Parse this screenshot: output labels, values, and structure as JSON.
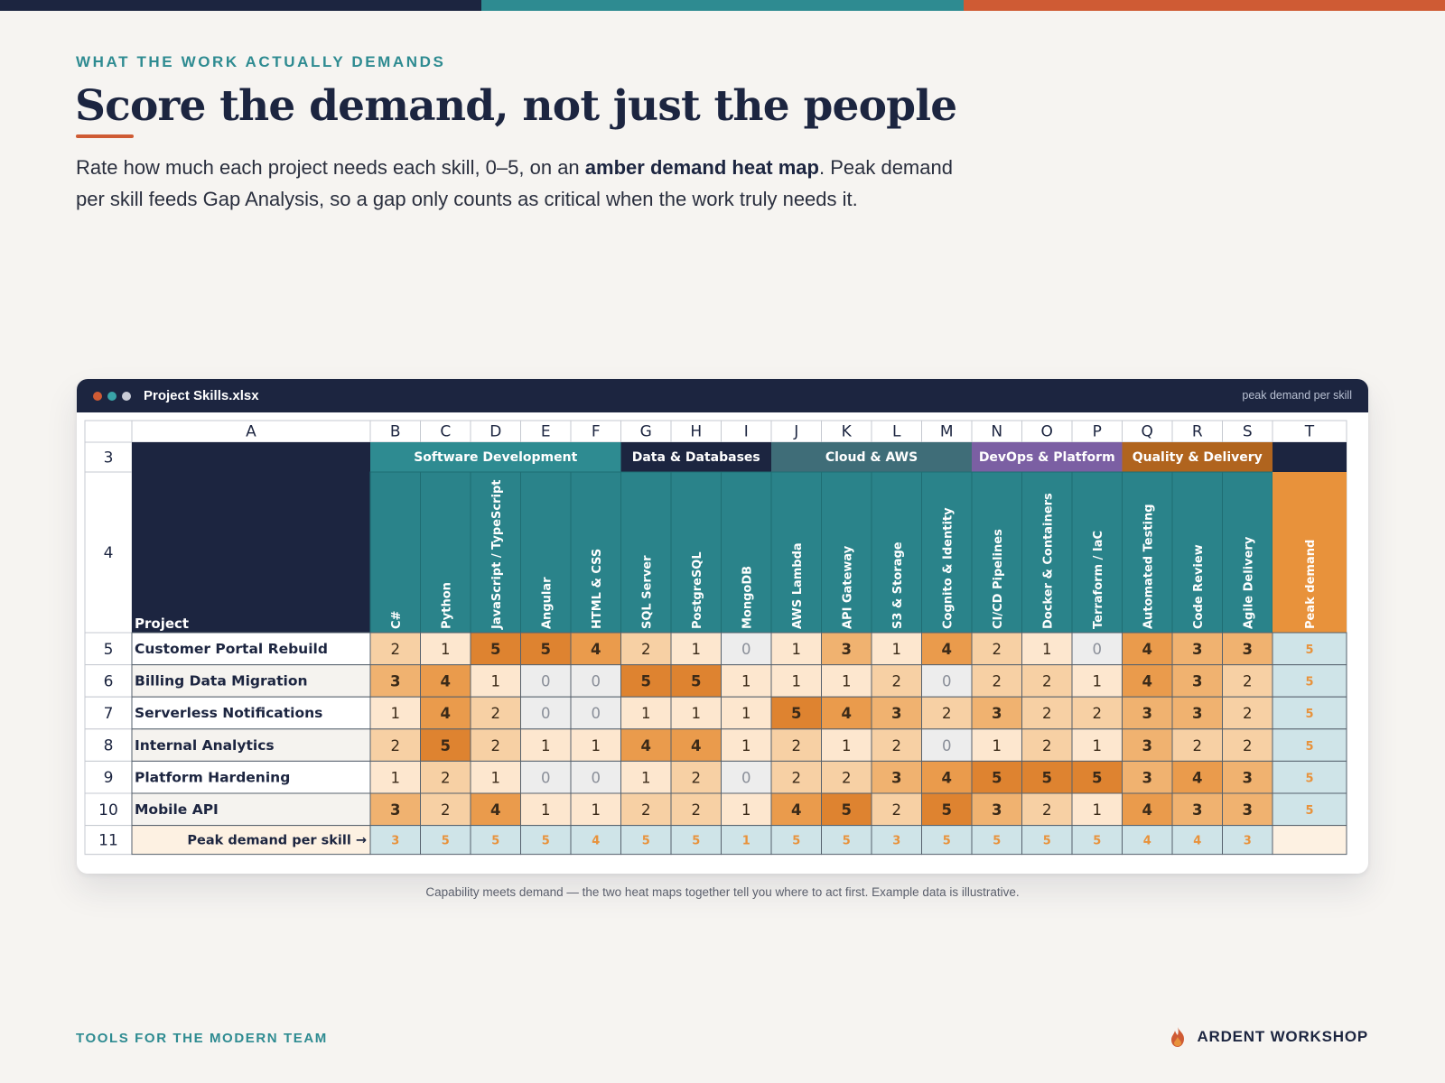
{
  "colors": {
    "navy": "#1c2540",
    "teal": "#2e8b91",
    "orange": "#cf5b34",
    "peak_header": "#e8923b",
    "peak_cell": "#cfe4e8",
    "demand_scale": [
      "#ededed",
      "#fde7cf",
      "#f7d0a4",
      "#f0b270",
      "#ea9b4c",
      "#de8330"
    ]
  },
  "header": {
    "eyebrow": "WHAT THE WORK ACTUALLY DEMANDS",
    "title": "Score the demand, not just the people",
    "lede_pre": "Rate how much each project needs each skill, 0–5, on an ",
    "lede_bold": "amber demand heat map",
    "lede_post": ". Peak demand per skill feeds Gap Analysis, so a gap only counts as critical when the work truly needs it."
  },
  "window": {
    "file_name": "Project Skills.xlsx",
    "note": "peak demand per skill",
    "dots": [
      "#cf5b34",
      "#39a4a8",
      "#c9ccd6"
    ]
  },
  "sheet": {
    "columns": [
      "A",
      "B",
      "C",
      "D",
      "E",
      "F",
      "G",
      "H",
      "I",
      "J",
      "K",
      "L",
      "M",
      "N",
      "O",
      "P",
      "Q",
      "R",
      "S",
      "T"
    ],
    "row_numbers": [
      "3",
      "4",
      "5",
      "6",
      "7",
      "8",
      "9",
      "10",
      "11"
    ],
    "project_header": "Project",
    "peak_header": "Peak demand",
    "peak_row_label": "Peak demand per skill →",
    "groups": [
      {
        "label": "Software Development",
        "span": 5,
        "color": "#2e8b91"
      },
      {
        "label": "Data & Databases",
        "span": 3,
        "color": "#1c2540"
      },
      {
        "label": "Cloud & AWS",
        "span": 4,
        "color": "#3f6d78"
      },
      {
        "label": "DevOps & Platform",
        "span": 3,
        "color": "#7b5fa3"
      },
      {
        "label": "Quality & Delivery",
        "span": 3,
        "color": "#b0641e"
      }
    ],
    "skills": [
      "C#",
      "Python",
      "JavaScript / TypeScript",
      "Angular",
      "HTML & CSS",
      "SQL Server",
      "PostgreSQL",
      "MongoDB",
      "AWS Lambda",
      "API Gateway",
      "S3 & Storage",
      "Cognito & Identity",
      "CI/CD Pipelines",
      "Docker & Containers",
      "Terraform / IaC",
      "Automated Testing",
      "Code Review",
      "Agile Delivery"
    ],
    "projects": [
      {
        "name": "Customer Portal Rebuild",
        "values": [
          2,
          1,
          5,
          5,
          4,
          2,
          1,
          0,
          1,
          3,
          1,
          4,
          2,
          1,
          0,
          4,
          3,
          3
        ],
        "peak": 5
      },
      {
        "name": "Billing Data Migration",
        "values": [
          3,
          4,
          1,
          0,
          0,
          5,
          5,
          1,
          1,
          1,
          2,
          0,
          2,
          2,
          1,
          4,
          3,
          2
        ],
        "peak": 5
      },
      {
        "name": "Serverless Notifications",
        "values": [
          1,
          4,
          2,
          0,
          0,
          1,
          1,
          1,
          5,
          4,
          3,
          2,
          3,
          2,
          2,
          3,
          3,
          2
        ],
        "peak": 5
      },
      {
        "name": "Internal Analytics",
        "values": [
          2,
          5,
          2,
          1,
          1,
          4,
          4,
          1,
          2,
          1,
          2,
          0,
          1,
          2,
          1,
          3,
          2,
          2
        ],
        "peak": 5
      },
      {
        "name": "Platform Hardening",
        "values": [
          1,
          2,
          1,
          0,
          0,
          1,
          2,
          0,
          2,
          2,
          3,
          4,
          5,
          5,
          5,
          3,
          4,
          3
        ],
        "peak": 5
      },
      {
        "name": "Mobile API",
        "values": [
          3,
          2,
          4,
          1,
          1,
          2,
          2,
          1,
          4,
          5,
          2,
          5,
          3,
          2,
          1,
          4,
          3,
          3
        ],
        "peak": 5
      }
    ],
    "peak_per_skill": [
      3,
      5,
      5,
      5,
      4,
      5,
      5,
      1,
      5,
      5,
      3,
      5,
      5,
      5,
      5,
      4,
      4,
      3
    ]
  },
  "caption": "Capability meets demand — the two heat maps together tell you where to act first. Example data is illustrative.",
  "footer": {
    "left": "TOOLS FOR THE MODERN TEAM",
    "brand": "ARDENT WORKSHOP",
    "logo_icon": "flame-icon"
  }
}
